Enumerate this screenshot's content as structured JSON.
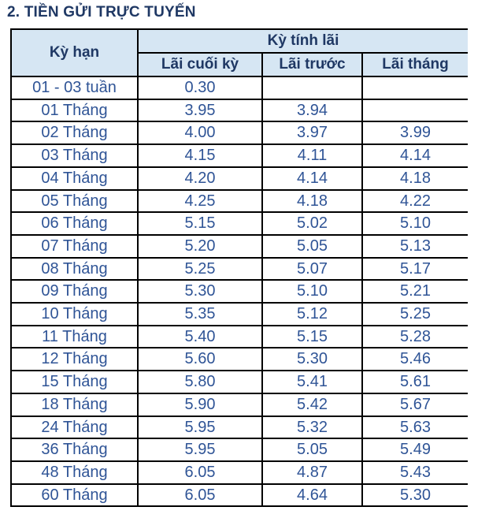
{
  "page": {
    "title": "2. TIỀN GỬI TRỰC TUYẾN"
  },
  "colors": {
    "title_text": "#1F3864",
    "header_bg": "#D6E6F3",
    "header_text": "#1F3864",
    "data_text": "#2F5496",
    "border": "#000000"
  },
  "table": {
    "term_header": "Kỳ hạn",
    "group_header": "Kỳ tính lãi",
    "sub_headers": [
      "Lãi cuối kỳ",
      "Lãi trước",
      "Lãi tháng"
    ],
    "rows": [
      {
        "term": "01 - 03 tuần",
        "end_of_term": "0.30",
        "prepaid": "",
        "monthly": ""
      },
      {
        "term": "01 Tháng",
        "end_of_term": "3.95",
        "prepaid": "3.94",
        "monthly": ""
      },
      {
        "term": "02 Tháng",
        "end_of_term": "4.00",
        "prepaid": "3.97",
        "monthly": "3.99"
      },
      {
        "term": "03 Tháng",
        "end_of_term": "4.15",
        "prepaid": "4.11",
        "monthly": "4.14"
      },
      {
        "term": "04 Tháng",
        "end_of_term": "4.20",
        "prepaid": "4.14",
        "monthly": "4.18"
      },
      {
        "term": "05 Tháng",
        "end_of_term": "4.25",
        "prepaid": "4.18",
        "monthly": "4.22"
      },
      {
        "term": "06 Tháng",
        "end_of_term": "5.15",
        "prepaid": "5.02",
        "monthly": "5.10"
      },
      {
        "term": "07 Tháng",
        "end_of_term": "5.20",
        "prepaid": "5.05",
        "monthly": "5.13"
      },
      {
        "term": "08 Tháng",
        "end_of_term": "5.25",
        "prepaid": "5.07",
        "monthly": "5.17"
      },
      {
        "term": "09 Tháng",
        "end_of_term": "5.30",
        "prepaid": "5.10",
        "monthly": "5.21"
      },
      {
        "term": "10 Tháng",
        "end_of_term": "5.35",
        "prepaid": "5.12",
        "monthly": "5.25"
      },
      {
        "term": "11 Tháng",
        "end_of_term": "5.40",
        "prepaid": "5.15",
        "monthly": "5.28"
      },
      {
        "term": "12 Tháng",
        "end_of_term": "5.60",
        "prepaid": "5.30",
        "monthly": "5.46"
      },
      {
        "term": "15 Tháng",
        "end_of_term": "5.80",
        "prepaid": "5.41",
        "monthly": "5.61"
      },
      {
        "term": "18 Tháng",
        "end_of_term": "5.90",
        "prepaid": "5.42",
        "monthly": "5.67"
      },
      {
        "term": "24 Tháng",
        "end_of_term": "5.95",
        "prepaid": "5.32",
        "monthly": "5.63"
      },
      {
        "term": "36 Tháng",
        "end_of_term": "5.95",
        "prepaid": "5.05",
        "monthly": "5.49"
      },
      {
        "term": "48 Tháng",
        "end_of_term": "6.05",
        "prepaid": "4.87",
        "monthly": "5.43"
      },
      {
        "term": "60 Tháng",
        "end_of_term": "6.05",
        "prepaid": "4.64",
        "monthly": "5.30"
      }
    ]
  }
}
